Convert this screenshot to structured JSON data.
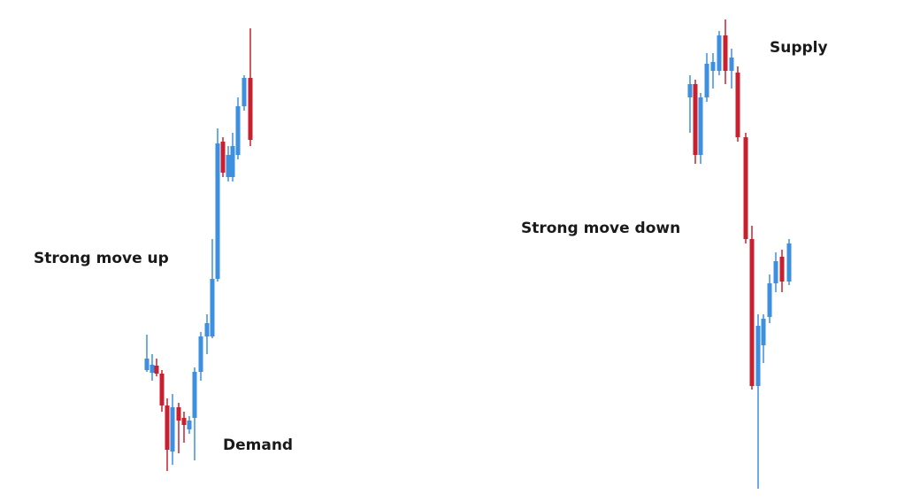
{
  "labels": {
    "strong_up": "Strong move up",
    "demand": "Demand",
    "supply": "Supply",
    "strong_down": "Strong move down"
  }
}
